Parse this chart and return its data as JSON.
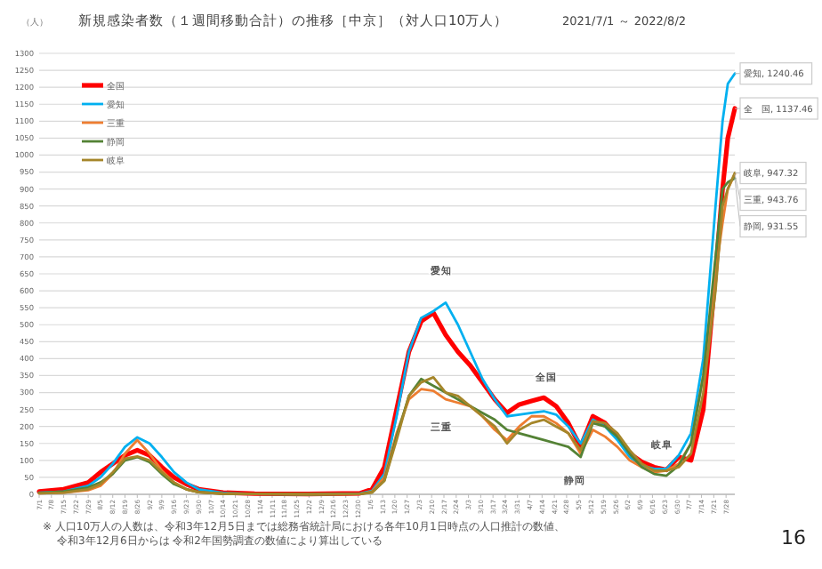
{
  "chart_data": {
    "type": "line",
    "title": "新規感染者数（１週間移動合計）の推移［中京］（対人口10万人）",
    "subtitle": "2021/7/1 ～ 2022/8/2",
    "ylabel": "（人）",
    "x": [
      "2021-07-01",
      "2021-07-15",
      "2021-07-29",
      "2021-08-05",
      "2021-08-12",
      "2021-08-19",
      "2021-08-26",
      "2021-09-02",
      "2021-09-09",
      "2021-09-16",
      "2021-09-23",
      "2021-09-30",
      "2021-10-14",
      "2021-11-01",
      "2021-12-01",
      "2021-12-31",
      "2022-01-07",
      "2022-01-14",
      "2022-01-21",
      "2022-01-28",
      "2022-02-04",
      "2022-02-11",
      "2022-02-18",
      "2022-02-25",
      "2022-03-04",
      "2022-03-11",
      "2022-03-18",
      "2022-03-25",
      "2022-04-01",
      "2022-04-08",
      "2022-04-15",
      "2022-04-22",
      "2022-04-29",
      "2022-05-06",
      "2022-05-13",
      "2022-05-20",
      "2022-05-27",
      "2022-06-03",
      "2022-06-10",
      "2022-06-17",
      "2022-06-24",
      "2022-07-01",
      "2022-07-08",
      "2022-07-15",
      "2022-07-22",
      "2022-07-26",
      "2022-07-29",
      "2022-08-02"
    ],
    "series": [
      {
        "name": "全国",
        "color": "#ff0000",
        "values": [
          8,
          15,
          35,
          65,
          90,
          115,
          130,
          115,
          80,
          50,
          30,
          15,
          5,
          2,
          1,
          3,
          15,
          80,
          250,
          420,
          510,
          535,
          470,
          420,
          380,
          330,
          280,
          240,
          265,
          275,
          285,
          260,
          210,
          140,
          230,
          210,
          170,
          120,
          95,
          80,
          72,
          110,
          100,
          250,
          650,
          900,
          1050,
          1137.46
        ],
        "value_labels": [
          null,
          null,
          null,
          null,
          null,
          null,
          null,
          null,
          null,
          null,
          null,
          null,
          null,
          null,
          null,
          null,
          null,
          null,
          null,
          null,
          null,
          null,
          null,
          null,
          null,
          null,
          null,
          null,
          null,
          null,
          null,
          null,
          null,
          null,
          null,
          null,
          null,
          null,
          null,
          null,
          null,
          null,
          null,
          null,
          null,
          null,
          null,
          "全　国, 1137.46"
        ]
      },
      {
        "name": "愛知",
        "color": "#00b0f0",
        "values": [
          5,
          8,
          25,
          50,
          90,
          140,
          168,
          150,
          110,
          65,
          35,
          15,
          4,
          1,
          0,
          2,
          10,
          60,
          230,
          420,
          520,
          540,
          565,
          500,
          420,
          340,
          280,
          230,
          235,
          240,
          245,
          235,
          200,
          150,
          220,
          200,
          160,
          110,
          85,
          75,
          75,
          115,
          180,
          400,
          850,
          1100,
          1210,
          1240.46
        ],
        "value_labels": [
          null,
          null,
          null,
          null,
          null,
          null,
          null,
          null,
          null,
          null,
          null,
          null,
          null,
          null,
          null,
          null,
          null,
          null,
          null,
          null,
          null,
          null,
          null,
          null,
          null,
          null,
          null,
          null,
          null,
          null,
          null,
          null,
          null,
          null,
          null,
          null,
          null,
          null,
          null,
          null,
          null,
          null,
          null,
          null,
          null,
          null,
          null,
          "愛知, 1240.46"
        ]
      },
      {
        "name": "三重",
        "color": "#ed7d31",
        "values": [
          3,
          5,
          12,
          25,
          60,
          120,
          160,
          120,
          70,
          35,
          15,
          6,
          2,
          1,
          0,
          1,
          8,
          50,
          180,
          280,
          310,
          305,
          280,
          270,
          260,
          230,
          190,
          160,
          200,
          230,
          230,
          210,
          180,
          120,
          190,
          170,
          140,
          100,
          80,
          65,
          70,
          90,
          150,
          350,
          650,
          800,
          900,
          943.76
        ],
        "value_labels": [
          null,
          null,
          null,
          null,
          null,
          null,
          null,
          null,
          null,
          null,
          null,
          null,
          null,
          null,
          null,
          null,
          null,
          null,
          null,
          null,
          null,
          null,
          null,
          null,
          null,
          null,
          null,
          null,
          null,
          null,
          null,
          null,
          null,
          null,
          null,
          null,
          null,
          null,
          null,
          null,
          null,
          null,
          null,
          null,
          null,
          null,
          null,
          "三重, 943.76"
        ]
      },
      {
        "name": "静岡",
        "color": "#548235",
        "values": [
          4,
          8,
          20,
          35,
          60,
          100,
          110,
          95,
          60,
          30,
          15,
          6,
          2,
          1,
          0,
          1,
          6,
          40,
          170,
          290,
          340,
          320,
          300,
          280,
          260,
          240,
          220,
          190,
          180,
          170,
          160,
          150,
          140,
          110,
          210,
          200,
          170,
          120,
          80,
          60,
          55,
          85,
          150,
          350,
          700,
          900,
          920,
          931.55
        ],
        "value_labels": [
          null,
          null,
          null,
          null,
          null,
          null,
          null,
          null,
          null,
          null,
          null,
          null,
          null,
          null,
          null,
          null,
          null,
          null,
          null,
          null,
          null,
          null,
          null,
          null,
          null,
          null,
          null,
          null,
          null,
          null,
          null,
          null,
          null,
          null,
          null,
          null,
          null,
          null,
          null,
          null,
          null,
          null,
          null,
          null,
          null,
          null,
          null,
          "静岡, 931.55"
        ]
      },
      {
        "name": "岐阜",
        "color": "#a5862a",
        "values": [
          3,
          5,
          15,
          30,
          65,
          105,
          112,
          100,
          65,
          35,
          15,
          6,
          2,
          1,
          0,
          1,
          5,
          40,
          160,
          290,
          330,
          345,
          300,
          290,
          260,
          230,
          200,
          150,
          190,
          210,
          220,
          200,
          180,
          130,
          215,
          210,
          180,
          130,
          90,
          70,
          70,
          80,
          120,
          300,
          600,
          850,
          900,
          947.32
        ],
        "value_labels": [
          null,
          null,
          null,
          null,
          null,
          null,
          null,
          null,
          null,
          null,
          null,
          null,
          null,
          null,
          null,
          null,
          null,
          null,
          null,
          null,
          null,
          null,
          null,
          null,
          null,
          null,
          null,
          null,
          null,
          null,
          null,
          null,
          null,
          null,
          null,
          null,
          null,
          null,
          null,
          null,
          null,
          null,
          null,
          null,
          null,
          null,
          null,
          "岐阜, 947.32"
        ]
      }
    ],
    "xlim": [
      "2021-07-01",
      "2022-08-02"
    ],
    "xticks": [
      {
        "value": "2021-07-01",
        "label": "7/1"
      },
      {
        "value": "2021-07-08",
        "label": "7/8"
      },
      {
        "value": "2021-07-15",
        "label": "7/15"
      },
      {
        "value": "2021-07-22",
        "label": "7/22"
      },
      {
        "value": "2021-07-29",
        "label": "7/29"
      },
      {
        "value": "2021-08-05",
        "label": "8/5"
      },
      {
        "value": "2021-08-12",
        "label": "8/12"
      },
      {
        "value": "2021-08-19",
        "label": "8/19"
      },
      {
        "value": "2021-08-26",
        "label": "8/26"
      },
      {
        "value": "2021-09-02",
        "label": "9/2"
      },
      {
        "value": "2021-09-09",
        "label": "9/9"
      },
      {
        "value": "2021-09-16",
        "label": "9/16"
      },
      {
        "value": "2021-09-23",
        "label": "9/23"
      },
      {
        "value": "2021-09-30",
        "label": "9/30"
      },
      {
        "value": "2021-10-07",
        "label": "10/7"
      },
      {
        "value": "2021-10-14",
        "label": "10/14"
      },
      {
        "value": "2021-10-21",
        "label": "10/21"
      },
      {
        "value": "2021-10-28",
        "label": "10/28"
      },
      {
        "value": "2021-11-04",
        "label": "11/4"
      },
      {
        "value": "2021-11-11",
        "label": "11/11"
      },
      {
        "value": "2021-11-18",
        "label": "11/18"
      },
      {
        "value": "2021-11-25",
        "label": "11/25"
      },
      {
        "value": "2021-12-02",
        "label": "12/2"
      },
      {
        "value": "2021-12-09",
        "label": "12/9"
      },
      {
        "value": "2021-12-16",
        "label": "12/16"
      },
      {
        "value": "2021-12-23",
        "label": "12/23"
      },
      {
        "value": "2021-12-30",
        "label": "12/30"
      },
      {
        "value": "2022-01-06",
        "label": "1/6"
      },
      {
        "value": "2022-01-13",
        "label": "1/13"
      },
      {
        "value": "2022-01-20",
        "label": "1/20"
      },
      {
        "value": "2022-01-27",
        "label": "1/27"
      },
      {
        "value": "2022-02-03",
        "label": "2/3"
      },
      {
        "value": "2022-02-10",
        "label": "2/10"
      },
      {
        "value": "2022-02-17",
        "label": "2/17"
      },
      {
        "value": "2022-02-24",
        "label": "2/24"
      },
      {
        "value": "2022-03-03",
        "label": "3/3"
      },
      {
        "value": "2022-03-10",
        "label": "3/10"
      },
      {
        "value": "2022-03-17",
        "label": "3/17"
      },
      {
        "value": "2022-03-24",
        "label": "3/24"
      },
      {
        "value": "2022-03-31",
        "label": "3/31"
      },
      {
        "value": "2022-04-07",
        "label": "4/7"
      },
      {
        "value": "2022-04-14",
        "label": "4/14"
      },
      {
        "value": "2022-04-21",
        "label": "4/21"
      },
      {
        "value": "2022-04-28",
        "label": "4/28"
      },
      {
        "value": "2022-05-05",
        "label": "5/5"
      },
      {
        "value": "2022-05-12",
        "label": "5/12"
      },
      {
        "value": "2022-05-19",
        "label": "5/19"
      },
      {
        "value": "2022-05-26",
        "label": "5/26"
      },
      {
        "value": "2022-06-02",
        "label": "6/2"
      },
      {
        "value": "2022-06-09",
        "label": "6/9"
      },
      {
        "value": "2022-06-16",
        "label": "6/16"
      },
      {
        "value": "2022-06-23",
        "label": "6/23"
      },
      {
        "value": "2022-06-30",
        "label": "6/30"
      },
      {
        "value": "2022-07-07",
        "label": "7/7"
      },
      {
        "value": "2022-07-14",
        "label": "7/14"
      },
      {
        "value": "2022-07-21",
        "label": "7/21"
      },
      {
        "value": "2022-07-28",
        "label": "7/28"
      }
    ],
    "ylim": [
      0,
      1300
    ],
    "yticks": [
      0,
      50,
      100,
      150,
      200,
      250,
      300,
      350,
      400,
      450,
      500,
      550,
      600,
      650,
      700,
      750,
      800,
      850,
      900,
      950,
      1000,
      1050,
      1100,
      1150,
      1200,
      1250,
      1300
    ],
    "grid": "y",
    "legend": "top left",
    "marker": "none",
    "line_style": "solid",
    "annotations": [
      "愛知",
      "全国",
      "三重",
      "静岡",
      "岐阜",
      "※ 人口10万人の人数は、令和3年12月5日までは総務省統計局における各年10月1日時点の人口推計の数値、",
      "令和3年12月6日からは 令和2年国勢調査の数値により算出している",
      "16"
    ]
  }
}
